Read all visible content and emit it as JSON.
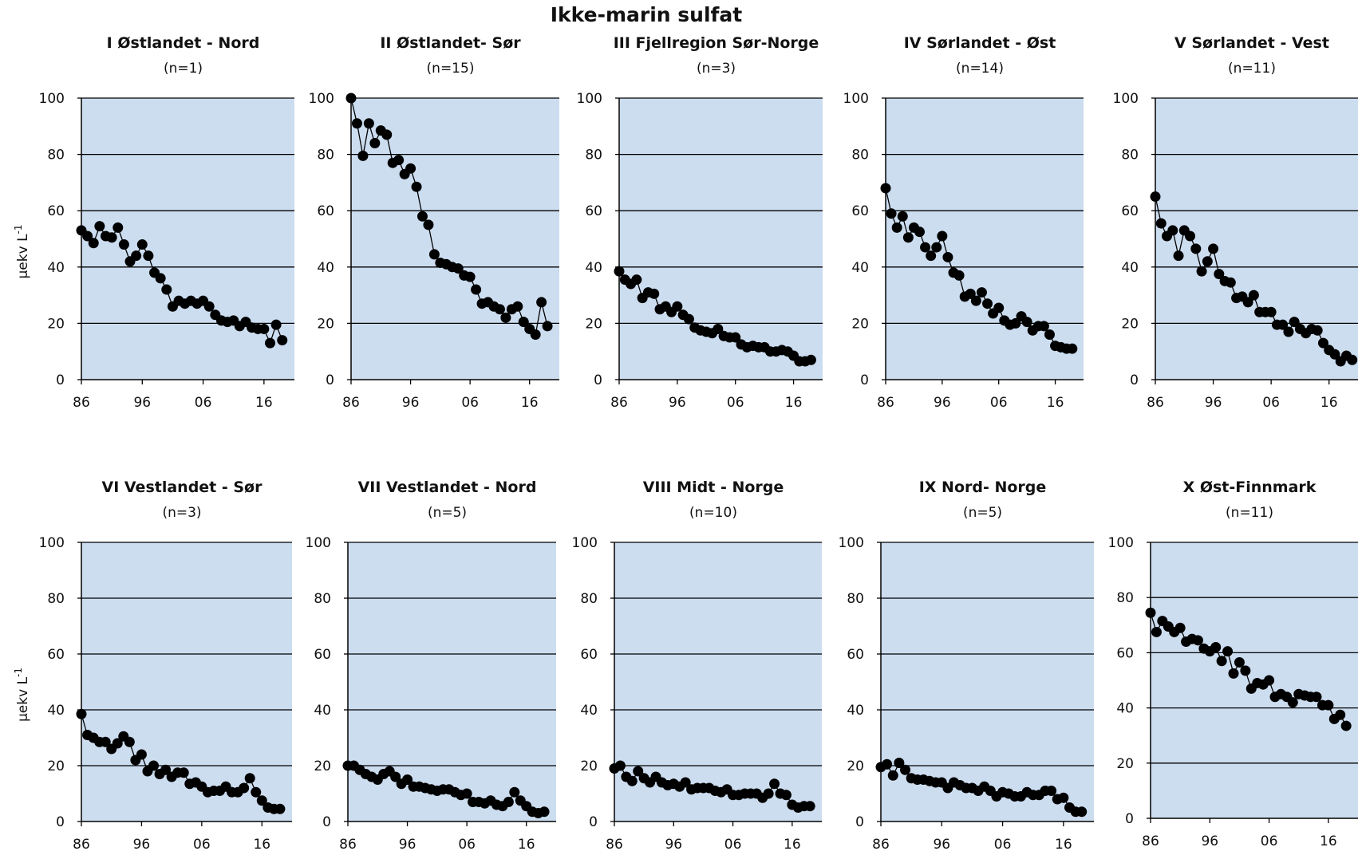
{
  "figure": {
    "title": "Ikke-marin sulfat"
  },
  "chart_data": [
    {
      "type": "line",
      "title": "I Østlandet - Nord",
      "subtitle": "(n=1)",
      "ylabel": "μekv L",
      "ylabel_sup": "-1",
      "ylim": [
        0,
        100
      ],
      "xlim": [
        1986,
        2021
      ],
      "yticks": [
        "0",
        "20",
        "40",
        "60",
        "80",
        "100"
      ],
      "xticks": [
        {
          "value": 1986,
          "label": "86"
        },
        {
          "value": 1996,
          "label": "96"
        },
        {
          "value": 2006,
          "label": "06"
        },
        {
          "value": 2016,
          "label": "16"
        }
      ],
      "grid": true,
      "marker": "circle",
      "x": [
        1986,
        1987,
        1988,
        1989,
        1990,
        1991,
        1992,
        1993,
        1994,
        1995,
        1996,
        1997,
        1998,
        1999,
        2000,
        2001,
        2002,
        2003,
        2004,
        2005,
        2006,
        2007,
        2008,
        2009,
        2010,
        2011,
        2012,
        2013,
        2014,
        2015,
        2016,
        2017,
        2018,
        2019
      ],
      "y": [
        53,
        51,
        48.5,
        54.5,
        51,
        50.5,
        54,
        48,
        42,
        44,
        48,
        44,
        38,
        36,
        32,
        26,
        28,
        27,
        28,
        27,
        28,
        26,
        23,
        21,
        20.5,
        21,
        19,
        20.5,
        18.5,
        18,
        18,
        13,
        19.5,
        14
      ]
    },
    {
      "type": "line",
      "title": "II Østlandet- Sør",
      "subtitle": "(n=15)",
      "ylabel": "",
      "ylim": [
        0,
        100
      ],
      "xlim": [
        1986,
        2021
      ],
      "yticks": [
        "0",
        "20",
        "40",
        "60",
        "80",
        "100"
      ],
      "xticks": [
        {
          "value": 1986,
          "label": "86"
        },
        {
          "value": 1996,
          "label": "96"
        },
        {
          "value": 2006,
          "label": "06"
        },
        {
          "value": 2016,
          "label": "16"
        }
      ],
      "grid": true,
      "marker": "circle",
      "x": [
        1986,
        1987,
        1988,
        1989,
        1990,
        1991,
        1992,
        1993,
        1994,
        1995,
        1996,
        1997,
        1998,
        1999,
        2000,
        2001,
        2002,
        2003,
        2004,
        2005,
        2006,
        2007,
        2008,
        2009,
        2010,
        2011,
        2012,
        2013,
        2014,
        2015,
        2016,
        2017,
        2018,
        2019
      ],
      "y": [
        100,
        91,
        79.5,
        91,
        84,
        88.5,
        87,
        77,
        78,
        73,
        75,
        68.5,
        58,
        55,
        44.5,
        41.5,
        41,
        40,
        39.5,
        37,
        36.5,
        32,
        27,
        27.5,
        26,
        25,
        22,
        25,
        26,
        20.5,
        18,
        16,
        27.5,
        19
      ]
    },
    {
      "type": "line",
      "title": "III Fjellregion Sør-Norge",
      "subtitle": "(n=3)",
      "ylabel": "",
      "ylim": [
        0,
        100
      ],
      "xlim": [
        1986,
        2021
      ],
      "yticks": [
        "0",
        "20",
        "40",
        "60",
        "80",
        "100"
      ],
      "xticks": [
        {
          "value": 1986,
          "label": "86"
        },
        {
          "value": 1996,
          "label": "96"
        },
        {
          "value": 2006,
          "label": "06"
        },
        {
          "value": 2016,
          "label": "16"
        }
      ],
      "grid": true,
      "marker": "circle",
      "x": [
        1986,
        1987,
        1988,
        1989,
        1990,
        1991,
        1992,
        1993,
        1994,
        1995,
        1996,
        1997,
        1998,
        1999,
        2000,
        2001,
        2002,
        2003,
        2004,
        2005,
        2006,
        2007,
        2008,
        2009,
        2010,
        2011,
        2012,
        2013,
        2014,
        2015,
        2016,
        2017,
        2018,
        2019
      ],
      "y": [
        38.5,
        35.5,
        34,
        35.5,
        29,
        31,
        30.5,
        25,
        26,
        24,
        26,
        23,
        21.5,
        18.5,
        17.5,
        17,
        16.5,
        18,
        15.5,
        15,
        15,
        12.5,
        11.5,
        12,
        11.5,
        11.5,
        10,
        10,
        10.5,
        10,
        8.5,
        6.5,
        6.5,
        7
      ]
    },
    {
      "type": "line",
      "title": "IV Sørlandet - Øst",
      "subtitle": "(n=14)",
      "ylabel": "",
      "ylim": [
        0,
        100
      ],
      "xlim": [
        1986,
        2021
      ],
      "yticks": [
        "0",
        "20",
        "40",
        "60",
        "80",
        "100"
      ],
      "xticks": [
        {
          "value": 1986,
          "label": "86"
        },
        {
          "value": 1996,
          "label": "96"
        },
        {
          "value": 2006,
          "label": "06"
        },
        {
          "value": 2016,
          "label": "16"
        }
      ],
      "grid": true,
      "marker": "circle",
      "x": [
        1986,
        1987,
        1988,
        1989,
        1990,
        1991,
        1992,
        1993,
        1994,
        1995,
        1996,
        1997,
        1998,
        1999,
        2000,
        2001,
        2002,
        2003,
        2004,
        2005,
        2006,
        2007,
        2008,
        2009,
        2010,
        2011,
        2012,
        2013,
        2014,
        2015,
        2016,
        2017,
        2018,
        2019
      ],
      "y": [
        68,
        59,
        54,
        58,
        50.5,
        54,
        52.5,
        47,
        44,
        47,
        51,
        43.5,
        38,
        37,
        29.5,
        30.5,
        28,
        31,
        27,
        23.5,
        25.5,
        21,
        19.5,
        20,
        22.5,
        20.5,
        17.5,
        19,
        19,
        16,
        12,
        11.5,
        11,
        11
      ]
    },
    {
      "type": "line",
      "title": "V Sørlandet - Vest",
      "subtitle": "(n=11)",
      "ylabel": "",
      "ylim": [
        0,
        100
      ],
      "xlim": [
        1986,
        2021
      ],
      "yticks": [
        "0",
        "20",
        "40",
        "60",
        "80",
        "100"
      ],
      "xticks": [
        {
          "value": 1986,
          "label": "86"
        },
        {
          "value": 1996,
          "label": "96"
        },
        {
          "value": 2006,
          "label": "06"
        },
        {
          "value": 2016,
          "label": "16"
        }
      ],
      "grid": true,
      "marker": "circle",
      "x": [
        1986,
        1987,
        1988,
        1989,
        1990,
        1991,
        1992,
        1993,
        1994,
        1995,
        1996,
        1997,
        1998,
        1999,
        2000,
        2001,
        2002,
        2003,
        2004,
        2005,
        2006,
        2007,
        2008,
        2009,
        2010,
        2011,
        2012,
        2013,
        2014,
        2015,
        2016,
        2017,
        2018,
        2019,
        2020
      ],
      "y": [
        65,
        55.5,
        51,
        53,
        44,
        53,
        51,
        46.5,
        38.5,
        42,
        46.5,
        37.5,
        35,
        34.5,
        29,
        29.5,
        27.5,
        30,
        24,
        24,
        24,
        19.5,
        19.5,
        17,
        20.5,
        18,
        16.5,
        18,
        17.5,
        13,
        10.5,
        9,
        6.5,
        8.5,
        7
      ]
    },
    {
      "type": "line",
      "title": "VI Vestlandet - Sør",
      "subtitle": "(n=3)",
      "ylabel": "μekv L",
      "ylabel_sup": "-1",
      "ylim": [
        0,
        100
      ],
      "xlim": [
        1986,
        2021
      ],
      "yticks": [
        "0",
        "20",
        "40",
        "60",
        "80",
        "100"
      ],
      "xticks": [
        {
          "value": 1986,
          "label": "86"
        },
        {
          "value": 1996,
          "label": "96"
        },
        {
          "value": 2006,
          "label": "06"
        },
        {
          "value": 2016,
          "label": "16"
        }
      ],
      "grid": true,
      "marker": "circle",
      "x": [
        1986,
        1987,
        1988,
        1989,
        1990,
        1991,
        1992,
        1993,
        1994,
        1995,
        1996,
        1997,
        1998,
        1999,
        2000,
        2001,
        2002,
        2003,
        2004,
        2005,
        2006,
        2007,
        2008,
        2009,
        2010,
        2011,
        2012,
        2013,
        2014,
        2015,
        2016,
        2017,
        2018,
        2019
      ],
      "y": [
        38.5,
        31,
        30,
        28.5,
        28.5,
        26,
        28,
        30.5,
        28.5,
        22,
        24,
        18,
        20,
        17,
        18.5,
        16,
        17.5,
        17.5,
        13.5,
        14,
        12.5,
        10.5,
        11,
        11,
        12.5,
        10.5,
        10.5,
        12,
        15.5,
        10.5,
        7.5,
        5,
        4.5,
        4.5
      ]
    },
    {
      "type": "line",
      "title": "VII Vestlandet - Nord",
      "subtitle": "(n=5)",
      "ylabel": "",
      "ylim": [
        0,
        100
      ],
      "xlim": [
        1986,
        2021
      ],
      "yticks": [
        "0",
        "20",
        "40",
        "60",
        "80",
        "100"
      ],
      "xticks": [
        {
          "value": 1986,
          "label": "86"
        },
        {
          "value": 1996,
          "label": "96"
        },
        {
          "value": 2006,
          "label": "06"
        },
        {
          "value": 2016,
          "label": "16"
        }
      ],
      "grid": true,
      "marker": "circle",
      "x": [
        1986,
        1987,
        1988,
        1989,
        1990,
        1991,
        1992,
        1993,
        1994,
        1995,
        1996,
        1997,
        1998,
        1999,
        2000,
        2001,
        2002,
        2003,
        2004,
        2005,
        2006,
        2007,
        2008,
        2009,
        2010,
        2011,
        2012,
        2013,
        2014,
        2015,
        2016,
        2017,
        2018,
        2019
      ],
      "y": [
        20,
        20,
        18.5,
        17,
        16,
        15,
        17,
        18,
        16,
        13.5,
        15,
        12.5,
        12.5,
        12,
        11.5,
        11,
        11.5,
        11.5,
        10.5,
        9.5,
        10,
        7,
        7,
        6.5,
        7.5,
        6,
        5.5,
        7,
        10.5,
        7.5,
        5.5,
        3.5,
        3,
        3.5
      ]
    },
    {
      "type": "line",
      "title": "VIII Midt - Norge",
      "subtitle": "(n=10)",
      "ylabel": "",
      "ylim": [
        0,
        100
      ],
      "xlim": [
        1986,
        2021
      ],
      "yticks": [
        "0",
        "20",
        "40",
        "60",
        "80",
        "100"
      ],
      "xticks": [
        {
          "value": 1986,
          "label": "86"
        },
        {
          "value": 1996,
          "label": "96"
        },
        {
          "value": 2006,
          "label": "06"
        },
        {
          "value": 2016,
          "label": "16"
        }
      ],
      "grid": true,
      "marker": "circle",
      "x": [
        1986,
        1987,
        1988,
        1989,
        1990,
        1991,
        1992,
        1993,
        1994,
        1995,
        1996,
        1997,
        1998,
        1999,
        2000,
        2001,
        2002,
        2003,
        2004,
        2005,
        2006,
        2007,
        2008,
        2009,
        2010,
        2011,
        2012,
        2013,
        2014,
        2015,
        2016,
        2017,
        2018,
        2019
      ],
      "y": [
        19,
        20,
        16,
        14.5,
        18,
        15.5,
        14,
        16,
        14,
        13,
        13.5,
        12.5,
        14,
        11.5,
        12,
        12,
        12,
        11,
        10.5,
        11.5,
        9.5,
        9.5,
        10,
        10,
        10,
        8.5,
        10,
        13.5,
        10,
        9.5,
        6,
        5,
        5.5,
        5.5
      ]
    },
    {
      "type": "line",
      "title": "IX Nord- Norge",
      "subtitle": "(n=5)",
      "ylabel": "",
      "ylim": [
        0,
        100
      ],
      "xlim": [
        1986,
        2021
      ],
      "yticks": [
        "0",
        "20",
        "40",
        "60",
        "80",
        "100"
      ],
      "xticks": [
        {
          "value": 1986,
          "label": "86"
        },
        {
          "value": 1996,
          "label": "96"
        },
        {
          "value": 2006,
          "label": "06"
        },
        {
          "value": 2016,
          "label": "16"
        }
      ],
      "grid": true,
      "marker": "circle",
      "x": [
        1986,
        1987,
        1988,
        1989,
        1990,
        1991,
        1992,
        1993,
        1994,
        1995,
        1996,
        1997,
        1998,
        1999,
        2000,
        2001,
        2002,
        2003,
        2004,
        2005,
        2006,
        2007,
        2008,
        2009,
        2010,
        2011,
        2012,
        2013,
        2014,
        2015,
        2016,
        2017,
        2018,
        2019
      ],
      "y": [
        19.5,
        20.5,
        16.5,
        21,
        18.5,
        15.5,
        15,
        15,
        14.5,
        14,
        14,
        12,
        14,
        13,
        12,
        12,
        11,
        12.5,
        11,
        9,
        10.5,
        10,
        9,
        9,
        10.5,
        9.5,
        9.5,
        11,
        11,
        8,
        8.5,
        5,
        3.5,
        3.5
      ]
    },
    {
      "type": "line",
      "title": "X Øst-Finnmark",
      "subtitle": "(n=11)",
      "ylabel": "",
      "ylim": [
        0,
        100
      ],
      "xlim": [
        1986,
        2021
      ],
      "yticks": [
        "0",
        "20",
        "40",
        "60",
        "80",
        "100"
      ],
      "xticks": [
        {
          "value": 1986,
          "label": "86"
        },
        {
          "value": 1996,
          "label": "96"
        },
        {
          "value": 2006,
          "label": "06"
        },
        {
          "value": 2016,
          "label": "16"
        }
      ],
      "grid": true,
      "marker": "circle",
      "x": [
        1986,
        1987,
        1988,
        1989,
        1990,
        1991,
        1992,
        1993,
        1994,
        1995,
        1996,
        1997,
        1998,
        1999,
        2000,
        2001,
        2002,
        2003,
        2004,
        2005,
        2006,
        2007,
        2008,
        2009,
        2010,
        2011,
        2012,
        2013,
        2014,
        2015,
        2016,
        2017,
        2018,
        2019
      ],
      "y": [
        74.5,
        67.5,
        71.5,
        69.5,
        67.5,
        69,
        64,
        65,
        64.5,
        61.5,
        60.5,
        62,
        57,
        60.5,
        52.5,
        56.5,
        53.5,
        47,
        49,
        48.5,
        50,
        44,
        45,
        44,
        42,
        45,
        44.5,
        44,
        44,
        41,
        41,
        36,
        37.5,
        33.5
      ]
    }
  ]
}
